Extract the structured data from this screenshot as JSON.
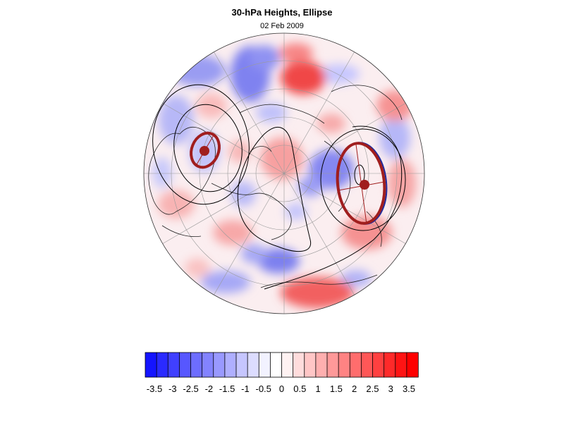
{
  "figure": {
    "title": "30-hPa Heights, Ellipse",
    "subtitle": "02 Feb 2009"
  },
  "colorbar": {
    "labels": [
      "-3.5",
      "-3",
      "-2.5",
      "-2",
      "-1.5",
      "-1",
      "-0.5",
      "0",
      "0.5",
      "1",
      "1.5",
      "2",
      "2.5",
      "3",
      "3.5"
    ],
    "colors": [
      "#1414ff",
      "#2a2aff",
      "#4040ff",
      "#5757ff",
      "#6d6dff",
      "#8383ff",
      "#9999ff",
      "#afafff",
      "#c6c6ff",
      "#dcdcff",
      "#f2f2ff",
      "#ffffff",
      "#fff2f2",
      "#ffdcdc",
      "#ffc6c6",
      "#ffafaf",
      "#ff9999",
      "#ff8383",
      "#ff6d6d",
      "#ff5757",
      "#ff4040",
      "#ff2a2a",
      "#ff1414",
      "#ff0000"
    ]
  },
  "colors": {
    "ellipse": "#a01e1e",
    "contour": "#000000",
    "coast": "#222222",
    "grid": "#9a9a9a"
  }
}
